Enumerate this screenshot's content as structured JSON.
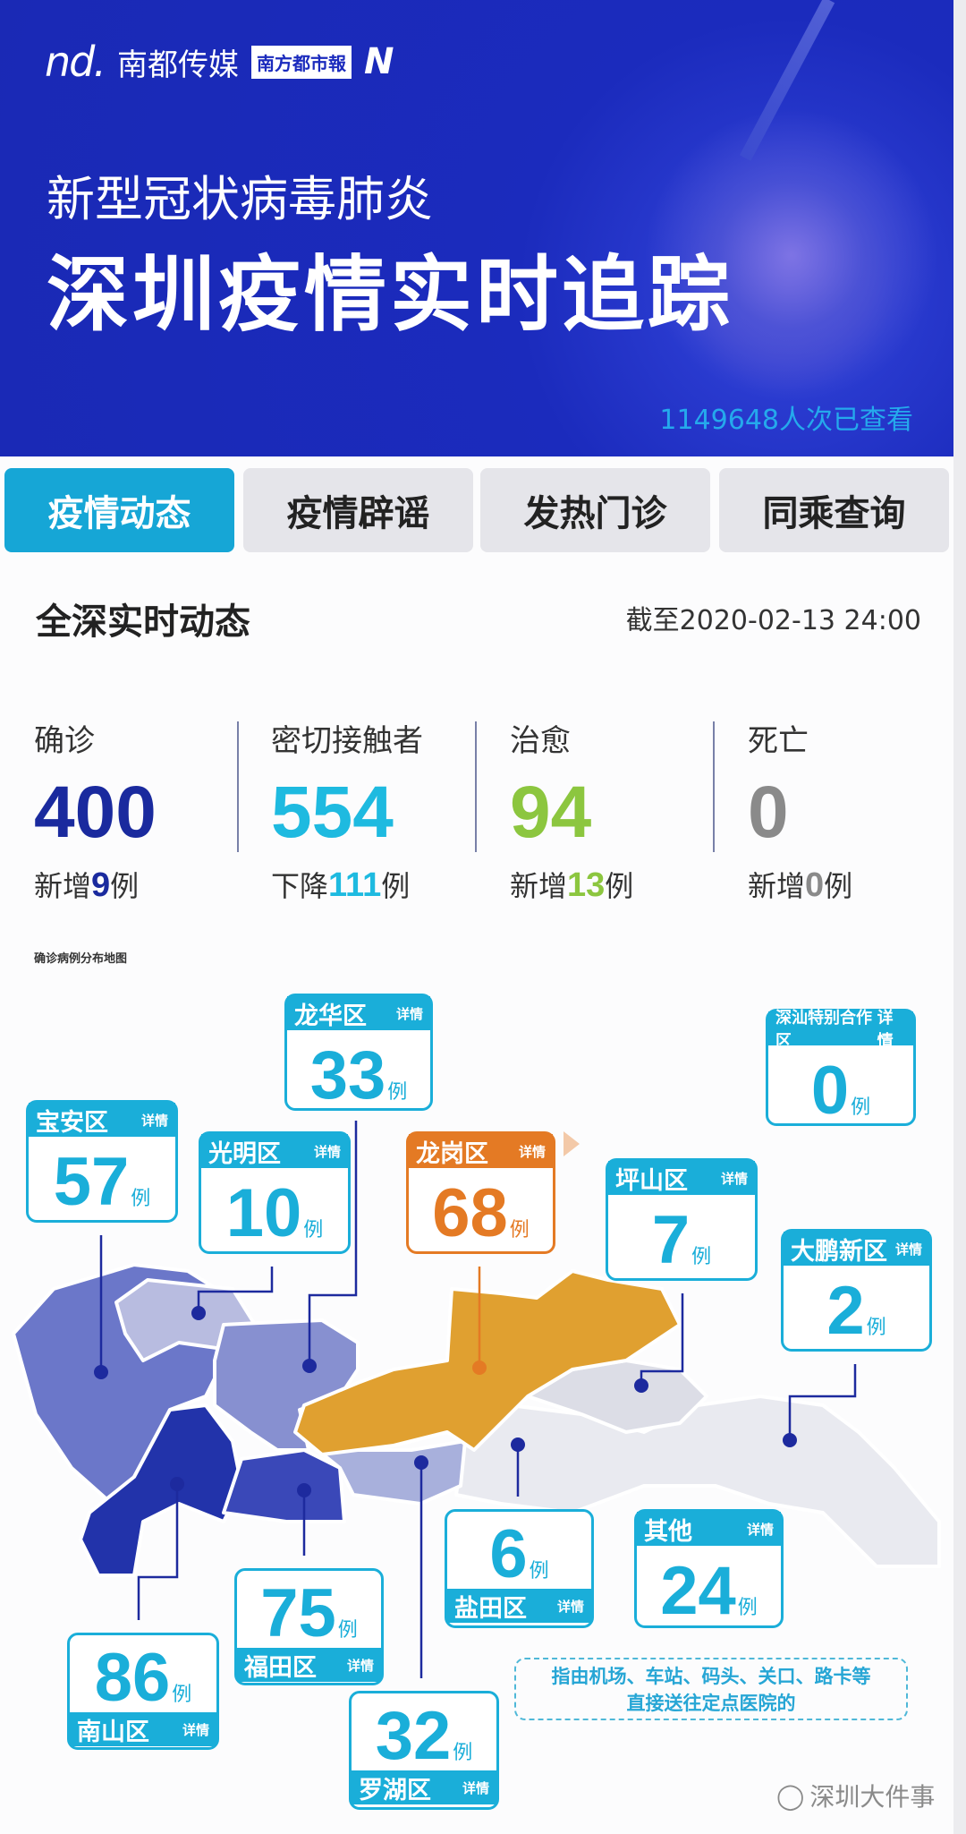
{
  "header": {
    "logo_brand": "南都传媒",
    "logo_paper": "南方都市報",
    "subtitle": "新型冠状病毒肺炎",
    "title": "深圳疫情实时追踪",
    "views": "1149648人次已查看"
  },
  "tabs": [
    {
      "label": "疫情动态",
      "active": true
    },
    {
      "label": "疫情辟谣",
      "active": false
    },
    {
      "label": "发热门诊",
      "active": false
    },
    {
      "label": "同乘查询",
      "active": false
    }
  ],
  "section": {
    "title": "全深实时动态",
    "as_of": "截至2020-02-13 24:00"
  },
  "stats": [
    {
      "label": "确诊",
      "value": "400",
      "delta_prefix": "新增",
      "delta": "9",
      "delta_suffix": "例",
      "color": "#1a2a9e"
    },
    {
      "label": "密切接触者",
      "value": "554",
      "delta_prefix": "下降",
      "delta": "111",
      "delta_suffix": "例",
      "color": "#1ebae0"
    },
    {
      "label": "治愈",
      "value": "94",
      "delta_prefix": "新增",
      "delta": "13",
      "delta_suffix": "例",
      "color": "#8cc63f"
    },
    {
      "label": "死亡",
      "value": "0",
      "delta_prefix": "新增",
      "delta": "0",
      "delta_suffix": "例",
      "color": "#8a8a8a"
    }
  ],
  "map": {
    "title": "确诊病例分布地图",
    "unit": "例",
    "detail": "详情",
    "districts": [
      {
        "name": "龙华区",
        "count": "33"
      },
      {
        "name": "深汕特别合作区",
        "count": "0"
      },
      {
        "name": "宝安区",
        "count": "57"
      },
      {
        "name": "光明区",
        "count": "10"
      },
      {
        "name": "龙岗区",
        "count": "68"
      },
      {
        "name": "坪山区",
        "count": "7"
      },
      {
        "name": "大鹏新区",
        "count": "2"
      },
      {
        "name": "盐田区",
        "count": "6"
      },
      {
        "name": "其他",
        "count": "24"
      },
      {
        "name": "南山区",
        "count": "86"
      },
      {
        "name": "福田区",
        "count": "75"
      },
      {
        "name": "罗湖区",
        "count": "32"
      }
    ],
    "note_line1": "指由机场、车站、码头、关口、路卡等",
    "note_line2": "直接送往定点医院的"
  },
  "watermark": "深圳大件事"
}
